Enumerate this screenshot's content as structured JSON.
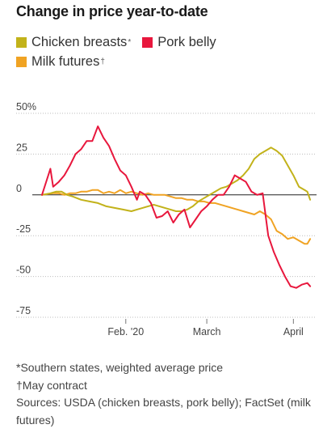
{
  "chart_data": {
    "type": "line",
    "title": "Change in price year-to-date",
    "xlabel": "",
    "ylabel": "",
    "ylim": [
      -75,
      50
    ],
    "y_ticks": [
      {
        "value": 50,
        "label": "50%"
      },
      {
        "value": 25,
        "label": "25"
      },
      {
        "value": 0,
        "label": "0"
      },
      {
        "value": -25,
        "label": "-25"
      },
      {
        "value": -50,
        "label": "-50"
      },
      {
        "value": -75,
        "label": "-75"
      }
    ],
    "xlim": [
      "2020-01-02",
      "2020-04-09"
    ],
    "x_ticks": [
      {
        "date": "2020-02-01",
        "label": "Feb. '20"
      },
      {
        "date": "2020-03-01",
        "label": "March"
      },
      {
        "date": "2020-04-01",
        "label": "April"
      }
    ],
    "grid": "horizontal",
    "legend_position": "top-left",
    "series": [
      {
        "name": "Chicken breasts",
        "footnote_mark": "*",
        "color": "#c2b21a",
        "points": [
          [
            "2020-01-02",
            0
          ],
          [
            "2020-01-05",
            1
          ],
          [
            "2020-01-07",
            2
          ],
          [
            "2020-01-09",
            2
          ],
          [
            "2020-01-11",
            0
          ],
          [
            "2020-01-13",
            -1
          ],
          [
            "2020-01-16",
            -3
          ],
          [
            "2020-01-19",
            -4
          ],
          [
            "2020-01-22",
            -5
          ],
          [
            "2020-01-25",
            -7
          ],
          [
            "2020-01-28",
            -8
          ],
          [
            "2020-01-31",
            -9
          ],
          [
            "2020-02-03",
            -10
          ],
          [
            "2020-02-05",
            -9
          ],
          [
            "2020-02-07",
            -8
          ],
          [
            "2020-02-09",
            -7
          ],
          [
            "2020-02-11",
            -6
          ],
          [
            "2020-02-13",
            -7
          ],
          [
            "2020-02-15",
            -8
          ],
          [
            "2020-02-17",
            -9
          ],
          [
            "2020-02-19",
            -10
          ],
          [
            "2020-02-21",
            -10
          ],
          [
            "2020-02-23",
            -9
          ],
          [
            "2020-02-25",
            -7
          ],
          [
            "2020-02-27",
            -4
          ],
          [
            "2020-02-29",
            -2
          ],
          [
            "2020-03-02",
            0
          ],
          [
            "2020-03-04",
            2
          ],
          [
            "2020-03-06",
            4
          ],
          [
            "2020-03-08",
            5
          ],
          [
            "2020-03-10",
            7
          ],
          [
            "2020-03-12",
            9
          ],
          [
            "2020-03-14",
            12
          ],
          [
            "2020-03-16",
            16
          ],
          [
            "2020-03-18",
            22
          ],
          [
            "2020-03-20",
            25
          ],
          [
            "2020-03-22",
            27
          ],
          [
            "2020-03-24",
            29
          ],
          [
            "2020-03-26",
            27
          ],
          [
            "2020-03-28",
            24
          ],
          [
            "2020-03-30",
            18
          ],
          [
            "2020-04-01",
            12
          ],
          [
            "2020-04-03",
            5
          ],
          [
            "2020-04-05",
            3
          ],
          [
            "2020-04-06",
            2
          ],
          [
            "2020-04-07",
            -3
          ]
        ]
      },
      {
        "name": "Pork belly",
        "footnote_mark": "",
        "color": "#e8173d",
        "points": [
          [
            "2020-01-02",
            0
          ],
          [
            "2020-01-05",
            16
          ],
          [
            "2020-01-06",
            5
          ],
          [
            "2020-01-08",
            8
          ],
          [
            "2020-01-10",
            12
          ],
          [
            "2020-01-12",
            18
          ],
          [
            "2020-01-14",
            25
          ],
          [
            "2020-01-16",
            28
          ],
          [
            "2020-01-18",
            33
          ],
          [
            "2020-01-20",
            33
          ],
          [
            "2020-01-22",
            42
          ],
          [
            "2020-01-24",
            35
          ],
          [
            "2020-01-26",
            30
          ],
          [
            "2020-01-28",
            22
          ],
          [
            "2020-01-30",
            15
          ],
          [
            "2020-02-01",
            12
          ],
          [
            "2020-02-03",
            5
          ],
          [
            "2020-02-05",
            -3
          ],
          [
            "2020-02-06",
            2
          ],
          [
            "2020-02-08",
            0
          ],
          [
            "2020-02-10",
            -5
          ],
          [
            "2020-02-12",
            -14
          ],
          [
            "2020-02-14",
            -13
          ],
          [
            "2020-02-16",
            -10
          ],
          [
            "2020-02-18",
            -17
          ],
          [
            "2020-02-20",
            -12
          ],
          [
            "2020-02-22",
            -9
          ],
          [
            "2020-02-24",
            -20
          ],
          [
            "2020-02-26",
            -15
          ],
          [
            "2020-02-28",
            -10
          ],
          [
            "2020-03-01",
            -7
          ],
          [
            "2020-03-03",
            -3
          ],
          [
            "2020-03-05",
            0
          ],
          [
            "2020-03-07",
            0
          ],
          [
            "2020-03-09",
            5
          ],
          [
            "2020-03-11",
            12
          ],
          [
            "2020-03-13",
            10
          ],
          [
            "2020-03-15",
            8
          ],
          [
            "2020-03-17",
            2
          ],
          [
            "2020-03-19",
            0
          ],
          [
            "2020-03-21",
            1
          ],
          [
            "2020-03-23",
            -25
          ],
          [
            "2020-03-25",
            -35
          ],
          [
            "2020-03-27",
            -43
          ],
          [
            "2020-03-29",
            -50
          ],
          [
            "2020-03-31",
            -56
          ],
          [
            "2020-04-02",
            -57
          ],
          [
            "2020-04-04",
            -55
          ],
          [
            "2020-04-06",
            -54
          ],
          [
            "2020-04-07",
            -56
          ]
        ]
      },
      {
        "name": "Milk futures",
        "footnote_mark": "†",
        "color": "#f0a323",
        "points": [
          [
            "2020-01-02",
            0
          ],
          [
            "2020-01-06",
            1
          ],
          [
            "2020-01-08",
            1
          ],
          [
            "2020-01-10",
            0
          ],
          [
            "2020-01-12",
            1
          ],
          [
            "2020-01-14",
            1
          ],
          [
            "2020-01-16",
            2
          ],
          [
            "2020-01-18",
            2
          ],
          [
            "2020-01-20",
            3
          ],
          [
            "2020-01-22",
            3
          ],
          [
            "2020-01-24",
            1
          ],
          [
            "2020-01-26",
            2
          ],
          [
            "2020-01-28",
            1
          ],
          [
            "2020-01-30",
            3
          ],
          [
            "2020-02-01",
            1
          ],
          [
            "2020-02-03",
            2
          ],
          [
            "2020-02-05",
            1
          ],
          [
            "2020-02-07",
            0
          ],
          [
            "2020-02-09",
            1
          ],
          [
            "2020-02-11",
            0
          ],
          [
            "2020-02-13",
            0
          ],
          [
            "2020-02-15",
            0
          ],
          [
            "2020-02-17",
            -1
          ],
          [
            "2020-02-19",
            -2
          ],
          [
            "2020-02-21",
            -2
          ],
          [
            "2020-02-23",
            -3
          ],
          [
            "2020-02-25",
            -3
          ],
          [
            "2020-02-27",
            -4
          ],
          [
            "2020-02-29",
            -4
          ],
          [
            "2020-03-02",
            -5
          ],
          [
            "2020-03-04",
            -5
          ],
          [
            "2020-03-06",
            -6
          ],
          [
            "2020-03-08",
            -7
          ],
          [
            "2020-03-10",
            -8
          ],
          [
            "2020-03-12",
            -9
          ],
          [
            "2020-03-14",
            -10
          ],
          [
            "2020-03-16",
            -11
          ],
          [
            "2020-03-18",
            -12
          ],
          [
            "2020-03-20",
            -10
          ],
          [
            "2020-03-22",
            -12
          ],
          [
            "2020-03-24",
            -15
          ],
          [
            "2020-03-26",
            -22
          ],
          [
            "2020-03-28",
            -24
          ],
          [
            "2020-03-30",
            -27
          ],
          [
            "2020-04-01",
            -26
          ],
          [
            "2020-04-03",
            -28
          ],
          [
            "2020-04-05",
            -30
          ],
          [
            "2020-04-06",
            -30
          ],
          [
            "2020-04-07",
            -27
          ]
        ]
      }
    ]
  },
  "footnotes": [
    "*Southern states, weighted average price",
    "†May contract",
    "Sources: USDA (chicken breasts, pork belly); FactSet (milk futures)"
  ]
}
